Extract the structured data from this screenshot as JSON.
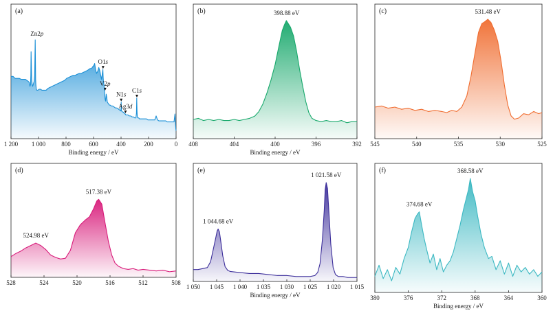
{
  "chart_data": [
    {
      "type": "area",
      "panel_label": "(a)",
      "xlabel": "Binding energy / eV",
      "ylabel": "",
      "xlim": [
        1200,
        0
      ],
      "ylim": [
        0,
        100
      ],
      "x_reversed": true,
      "xticks": [
        1200,
        1000,
        800,
        600,
        400,
        200,
        0
      ],
      "xtick_labels": [
        "1 200",
        "1 000",
        "800",
        "600",
        "400",
        "200",
        "0"
      ],
      "color": "#1a8fd6",
      "series": [
        {
          "x": [
            1200,
            1185,
            1170,
            1155,
            1140,
            1125,
            1110,
            1095,
            1085,
            1075,
            1068,
            1062,
            1058,
            1056,
            1054,
            1050,
            1046,
            1043,
            1040,
            1036,
            1032,
            1028,
            1024,
            1021,
            1019,
            1016,
            1012,
            1005,
            995,
            985,
            975,
            960,
            945,
            930,
            915,
            900,
            885,
            870,
            855,
            840,
            825,
            810,
            795,
            780,
            765,
            750,
            735,
            720,
            705,
            690,
            675,
            660,
            645,
            635,
            625,
            615,
            605,
            598,
            592,
            585,
            578,
            570,
            562,
            555,
            548,
            542,
            536,
            532,
            530,
            528,
            524,
            520,
            516,
            512,
            508,
            504,
            500,
            495,
            490,
            485,
            480,
            470,
            460,
            450,
            440,
            430,
            420,
            410,
            404,
            400,
            399,
            397,
            395,
            390,
            385,
            380,
            375,
            372,
            369,
            366,
            360,
            350,
            340,
            330,
            320,
            310,
            300,
            292,
            288,
            286,
            284,
            282,
            278,
            272,
            265,
            255,
            245,
            235,
            225,
            215,
            205,
            195,
            185,
            175,
            165,
            155,
            145,
            135,
            125,
            115,
            105,
            95,
            85,
            75,
            65,
            55,
            45,
            35,
            25,
            15,
            8,
            4,
            2,
            0
          ],
          "y": [
            63,
            63,
            61,
            61,
            61,
            60,
            60,
            60,
            59,
            58,
            57,
            53,
            55,
            64,
            88,
            60,
            55,
            53,
            54,
            56,
            58,
            64,
            100,
            60,
            54,
            50,
            49,
            49,
            50,
            50,
            49,
            49,
            49,
            51,
            52,
            53,
            54,
            55,
            56,
            57,
            58,
            59,
            61,
            62,
            63,
            64,
            64,
            65,
            66,
            66,
            67,
            68,
            69,
            70,
            71,
            71,
            73,
            74,
            76,
            70,
            66,
            68,
            72,
            69,
            64,
            60,
            66,
            70,
            62,
            58,
            54,
            48,
            40,
            38,
            45,
            42,
            37,
            36,
            35,
            34,
            34,
            33,
            33,
            32,
            31,
            31,
            30,
            29,
            28,
            30,
            37,
            28,
            28,
            27,
            27,
            26,
            26,
            25,
            25,
            24,
            24,
            24,
            23,
            23,
            22,
            22,
            21,
            21,
            26,
            41,
            28,
            22,
            21,
            21,
            20,
            20,
            20,
            20,
            20,
            20,
            19,
            19,
            19,
            19,
            19,
            19,
            23,
            19,
            18,
            18,
            18,
            18,
            18,
            18,
            17,
            17,
            17,
            17,
            17,
            17,
            25,
            14,
            10,
            8
          ]
        }
      ],
      "annotations": [
        {
          "text": "Zn2p",
          "x": 1021,
          "y": 100
        },
        {
          "text": "O1s",
          "x": 531,
          "y": 70
        },
        {
          "text": "V2p",
          "x": 516,
          "y": 48
        },
        {
          "text": "N1s",
          "x": 399,
          "y": 37
        },
        {
          "text": "Ag3d",
          "x": 368,
          "y": 25
        },
        {
          "text": "C1s",
          "x": 285,
          "y": 41
        }
      ]
    },
    {
      "type": "area",
      "panel_label": "(b)",
      "xlabel": "Binding energy / eV",
      "ylabel": "",
      "xlim": [
        408,
        392
      ],
      "ylim": [
        0,
        100
      ],
      "x_reversed": true,
      "xticks": [
        408,
        404,
        400,
        396,
        392
      ],
      "xtick_labels": [
        "408",
        "404",
        "400",
        "396",
        "392"
      ],
      "color": "#17a86b",
      "series": [
        {
          "x": [
            408,
            407.5,
            407,
            406.5,
            406,
            405.5,
            405,
            404.5,
            404,
            403.5,
            403,
            402.5,
            402,
            401.6,
            401.2,
            400.8,
            400.4,
            400.0,
            399.6,
            399.3,
            399.1,
            398.9,
            398.7,
            398.5,
            398.2,
            397.9,
            397.6,
            397.3,
            397.0,
            396.7,
            396.4,
            396,
            395.5,
            395,
            394.5,
            394,
            393.5,
            393,
            392.5,
            392
          ],
          "y": [
            10,
            11,
            9,
            10,
            9,
            10,
            9,
            9,
            10,
            9,
            10,
            11,
            13,
            17,
            24,
            34,
            46,
            60,
            78,
            91,
            96,
            100,
            97,
            94,
            86,
            72,
            55,
            40,
            26,
            16,
            11,
            9,
            8,
            9,
            8,
            8,
            9,
            7,
            8,
            8
          ]
        }
      ],
      "annotations": [
        {
          "text": "398.88 eV",
          "x": 398.88,
          "y": 100
        }
      ]
    },
    {
      "type": "area",
      "panel_label": "(c)",
      "xlabel": "",
      "ylabel": "",
      "xlim": [
        545,
        525
      ],
      "ylim": [
        0,
        100
      ],
      "x_reversed": true,
      "xticks": [
        545,
        540,
        535,
        530,
        525
      ],
      "xtick_labels": [
        "545",
        "540",
        "535",
        "530",
        "525"
      ],
      "color": "#f06d30",
      "series": [
        {
          "x": [
            545,
            544.2,
            543.4,
            542.6,
            541.8,
            541,
            540.2,
            539.4,
            538.6,
            537.8,
            537,
            536.4,
            535.8,
            535.2,
            534.6,
            534.0,
            533.5,
            533.0,
            532.6,
            532.2,
            531.8,
            531.48,
            531.1,
            530.7,
            530.3,
            529.9,
            529.5,
            529.1,
            528.7,
            528.3,
            527.8,
            527.2,
            526.6,
            526,
            525.4,
            525
          ],
          "y": [
            20,
            21,
            19,
            20,
            18,
            19,
            17,
            18,
            16,
            17,
            16,
            15,
            17,
            16,
            20,
            30,
            48,
            70,
            88,
            96,
            98,
            100,
            97,
            90,
            80,
            62,
            40,
            22,
            12,
            9,
            10,
            14,
            13,
            16,
            14,
            15
          ]
        }
      ],
      "annotations": [
        {
          "text": "531.48 eV",
          "x": 531.48,
          "y": 100
        }
      ]
    },
    {
      "type": "area",
      "panel_label": "(d)",
      "xlabel": "",
      "ylabel": "",
      "xlim": [
        528,
        508
      ],
      "ylim": [
        0,
        100
      ],
      "x_reversed": true,
      "xticks": [
        528,
        524,
        520,
        516,
        512,
        508
      ],
      "xtick_labels": [
        "528",
        "524",
        "520",
        "516",
        "512",
        "508"
      ],
      "color": "#d81b7a",
      "series": [
        {
          "x": [
            528,
            527.4,
            526.8,
            526.2,
            525.6,
            525.0,
            524.4,
            523.8,
            523.2,
            522.6,
            522.0,
            521.4,
            520.8,
            520.2,
            519.6,
            519.0,
            518.5,
            518.0,
            517.6,
            517.38,
            517.0,
            516.6,
            516.2,
            515.8,
            515.4,
            515.0,
            514.4,
            513.8,
            513.2,
            512.6,
            512.0,
            511.2,
            510.4,
            509.6,
            508.8,
            508
          ],
          "y": [
            26,
            30,
            33,
            37,
            40,
            43,
            40,
            35,
            28,
            25,
            23,
            24,
            34,
            56,
            66,
            72,
            76,
            86,
            96,
            98,
            92,
            68,
            45,
            28,
            18,
            14,
            11,
            10,
            11,
            9,
            10,
            9,
            8,
            9,
            7,
            8
          ]
        }
      ],
      "annotations": [
        {
          "text": "524.98 eV",
          "x": 524.98,
          "y": 43
        },
        {
          "text": "517.38 eV",
          "x": 517.38,
          "y": 98
        }
      ]
    },
    {
      "type": "area",
      "panel_label": "(e)",
      "xlabel": "Binding energy / eV",
      "ylabel": "",
      "xlim": [
        1050,
        1015
      ],
      "ylim": [
        0,
        100
      ],
      "x_reversed": true,
      "xticks": [
        1050,
        1045,
        1040,
        1035,
        1030,
        1025,
        1020,
        1015
      ],
      "xtick_labels": [
        "1 050",
        "1 045",
        "1 040",
        "1 035",
        "1 030",
        "1 025",
        "1 020",
        "1 015"
      ],
      "color": "#3b2d9a",
      "series": [
        {
          "x": [
            1050,
            1049,
            1048,
            1047,
            1046.3,
            1045.7,
            1045.2,
            1044.9,
            1044.68,
            1044.4,
            1044.1,
            1043.7,
            1043.2,
            1042.6,
            1042,
            1040,
            1038,
            1036,
            1034,
            1032,
            1030,
            1028,
            1026,
            1025,
            1024,
            1023.4,
            1022.9,
            1022.4,
            1022.0,
            1021.8,
            1021.58,
            1021.3,
            1021.0,
            1020.6,
            1020.1,
            1019.6,
            1019,
            1018,
            1017,
            1016,
            1015
          ],
          "y": [
            12,
            12,
            13,
            14,
            20,
            33,
            44,
            51,
            53,
            50,
            40,
            26,
            15,
            11,
            10,
            9,
            8,
            8,
            7,
            6,
            6,
            5,
            5,
            5,
            6,
            9,
            18,
            42,
            72,
            93,
            100,
            94,
            70,
            38,
            14,
            7,
            5,
            5,
            4,
            4,
            4
          ]
        }
      ],
      "annotations": [
        {
          "text": "1 044.68 eV",
          "x": 1044.68,
          "y": 53
        },
        {
          "text": "1 021.58 eV",
          "x": 1021.58,
          "y": 100
        }
      ]
    },
    {
      "type": "area",
      "panel_label": "(f)",
      "xlabel": "Binding energy / eV",
      "ylabel": "",
      "xlim": [
        380,
        360
      ],
      "ylim": [
        0,
        100
      ],
      "x_reversed": true,
      "xticks": [
        380,
        376,
        372,
        368,
        364,
        360
      ],
      "xtick_labels": [
        "380",
        "376",
        "372",
        "368",
        "364",
        "360"
      ],
      "color": "#3bb8c2",
      "series": [
        {
          "x": [
            380,
            379.5,
            379,
            378.5,
            378,
            377.5,
            377,
            376.5,
            376,
            375.6,
            375.2,
            374.9,
            374.68,
            374.4,
            374.1,
            373.8,
            373.4,
            373,
            372.6,
            372.2,
            371.8,
            371.4,
            371,
            370.6,
            370.2,
            369.8,
            369.4,
            369.0,
            368.8,
            368.58,
            368.3,
            368.0,
            367.7,
            367.3,
            366.9,
            366.4,
            366,
            365.5,
            365,
            364.5,
            364,
            363.5,
            363,
            362.5,
            362,
            361.5,
            361,
            360.5,
            360
          ],
          "y": [
            12,
            22,
            10,
            18,
            8,
            20,
            14,
            28,
            38,
            52,
            64,
            68,
            70,
            58,
            46,
            36,
            24,
            32,
            18,
            28,
            16,
            22,
            26,
            34,
            46,
            58,
            72,
            84,
            90,
            100,
            88,
            80,
            66,
            50,
            38,
            28,
            30,
            18,
            26,
            14,
            24,
            12,
            22,
            16,
            20,
            14,
            18,
            12,
            16
          ]
        }
      ],
      "annotations": [
        {
          "text": "374.68 eV",
          "x": 374.68,
          "y": 70
        },
        {
          "text": "368.58 eV",
          "x": 368.58,
          "y": 100
        }
      ]
    }
  ]
}
